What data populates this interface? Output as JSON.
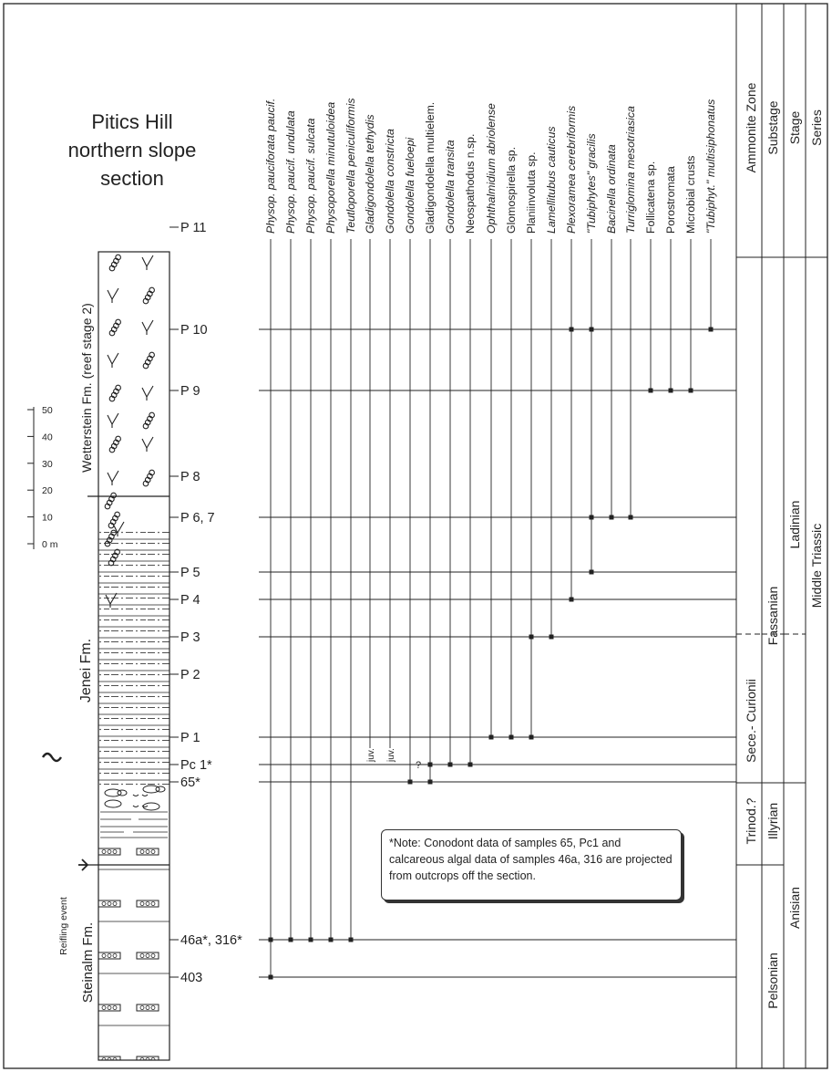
{
  "section_title": [
    "Pitics Hill",
    "northern slope",
    "section"
  ],
  "note": "*Note: Conodont data of samples 65, Pc1 and calcareous algal data of samples 46a, 316 are projected from outcrops off the section.",
  "scale_bar": {
    "ticks": [
      "0 m",
      "10",
      "20",
      "30",
      "40",
      "50"
    ]
  },
  "formations": [
    "Wetterstein Fm. (reef stage 2)",
    "Jenei  Fm.",
    "Steinalm Fm."
  ],
  "event_label": "Reifling event",
  "samples": [
    "P 11",
    "P 10",
    "P 9",
    "P 8",
    "P 6, 7",
    "P 5",
    "P 4",
    "P 3",
    "P 2",
    "P 1",
    "Pc 1*",
    "65*",
    "46a*, 316*",
    "403"
  ],
  "taxa": [
    {
      "name": "Physop. pauciforata paucif.",
      "italic": true
    },
    {
      "name": "Physop. paucif. undulata",
      "italic": true
    },
    {
      "name": "Physop. paucif. sulcata",
      "italic": true
    },
    {
      "name": "Physoporella minutuloidea",
      "italic": true
    },
    {
      "name": "Teutloporella peniculiformis",
      "italic": true
    },
    {
      "name": "Gladigondolella tethydis",
      "italic": true
    },
    {
      "name": "Gondolella constricta",
      "italic": true
    },
    {
      "name": "Gondolella fueloepi",
      "italic": true
    },
    {
      "name": "Gladigondolella multielem.",
      "italic": false
    },
    {
      "name": "Gondolella transita",
      "italic": true
    },
    {
      "name": "Neospathodus n.sp.",
      "italic": false
    },
    {
      "name": "Ophthalmidium abriolense",
      "italic": true
    },
    {
      "name": "Glomospirella sp.",
      "italic": false
    },
    {
      "name": "Planiinvoluta sp.",
      "italic": false
    },
    {
      "name": "Lamellitubus cauticus",
      "italic": true
    },
    {
      "name": "Plexoramea cerebriformis",
      "italic": true
    },
    {
      "name": "\"Tubiphytes\" gracilis",
      "italic": true
    },
    {
      "name": "Bacinella ordinata",
      "italic": true
    },
    {
      "name": "Turriglomina mesotriasica",
      "italic": true
    },
    {
      "name": "Follicatena sp.",
      "italic": false
    },
    {
      "name": "Porostromata",
      "italic": false
    },
    {
      "name": "Microbial crusts",
      "italic": false
    },
    {
      "name": "\"Tubiphyt.\" multisiphonatus",
      "italic": true
    }
  ],
  "ranges": [
    {
      "taxon": 0,
      "samples": [
        "46a*, 316*",
        "403"
      ]
    },
    {
      "taxon": 1,
      "samples": [
        "46a*, 316*"
      ]
    },
    {
      "taxon": 2,
      "samples": [
        "46a*, 316*"
      ]
    },
    {
      "taxon": 3,
      "samples": [
        "46a*, 316*"
      ]
    },
    {
      "taxon": 4,
      "samples": [
        "46a*, 316*"
      ]
    },
    {
      "taxon": 5,
      "samples": [],
      "annotation": "juv."
    },
    {
      "taxon": 6,
      "samples": [],
      "annotation": "juv."
    },
    {
      "taxon": 7,
      "samples": [
        "65*"
      ],
      "annotation": "?"
    },
    {
      "taxon": 8,
      "samples": [
        "Pc 1*",
        "65*"
      ]
    },
    {
      "taxon": 9,
      "samples": [
        "Pc 1*"
      ]
    },
    {
      "taxon": 10,
      "samples": [
        "Pc 1*"
      ]
    },
    {
      "taxon": 11,
      "samples": [
        "P 1"
      ]
    },
    {
      "taxon": 12,
      "samples": [
        "P 1"
      ]
    },
    {
      "taxon": 13,
      "samples": [
        "P 3",
        "P 1"
      ]
    },
    {
      "taxon": 14,
      "samples": [
        "P 3"
      ]
    },
    {
      "taxon": 15,
      "samples": [
        "P 10",
        "P 4"
      ]
    },
    {
      "taxon": 16,
      "samples": [
        "P 10",
        "P 6, 7",
        "P 5"
      ]
    },
    {
      "taxon": 17,
      "samples": [
        "P 6, 7"
      ]
    },
    {
      "taxon": 18,
      "samples": [
        "P 6, 7"
      ]
    },
    {
      "taxon": 19,
      "samples": [
        "P 9"
      ]
    },
    {
      "taxon": 20,
      "samples": [
        "P 9"
      ]
    },
    {
      "taxon": 21,
      "samples": [
        "P 9"
      ]
    },
    {
      "taxon": 22,
      "samples": [
        "P 10"
      ]
    }
  ],
  "chrono_headers": [
    "Ammonite Zone",
    "Substage",
    "Stage",
    "Series"
  ],
  "ammonite_zones": [
    "Sece.- Curionii",
    "Trinod.?"
  ],
  "substages": [
    "Fassanian",
    "Illyrian",
    "Pelsonian"
  ],
  "stages": [
    "Ladinian",
    "Anisian"
  ],
  "series": [
    "Middle Triassic"
  ]
}
